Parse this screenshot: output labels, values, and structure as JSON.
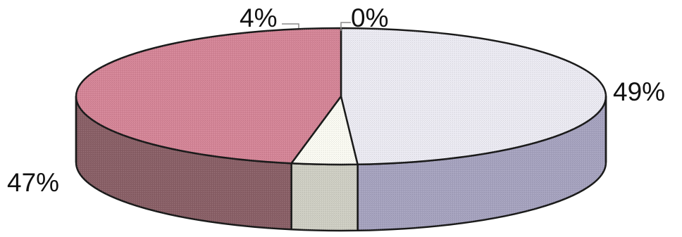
{
  "chart_data": {
    "type": "pie",
    "style": "3d",
    "slices": [
      {
        "label": "49%",
        "value": 49,
        "color": "#ecebf3",
        "side_color": "#a6a3bf"
      },
      {
        "label": "0%",
        "value": 0,
        "color": "#f2f2f2",
        "side_color": "#cccccc"
      },
      {
        "label": "4%",
        "value": 4,
        "color": "#fbfbf3",
        "side_color": "#cfcfc4"
      },
      {
        "label": "47%",
        "value": 47,
        "color": "#d58597",
        "side_color": "#8a6067"
      }
    ],
    "title": "",
    "legend": "none"
  }
}
